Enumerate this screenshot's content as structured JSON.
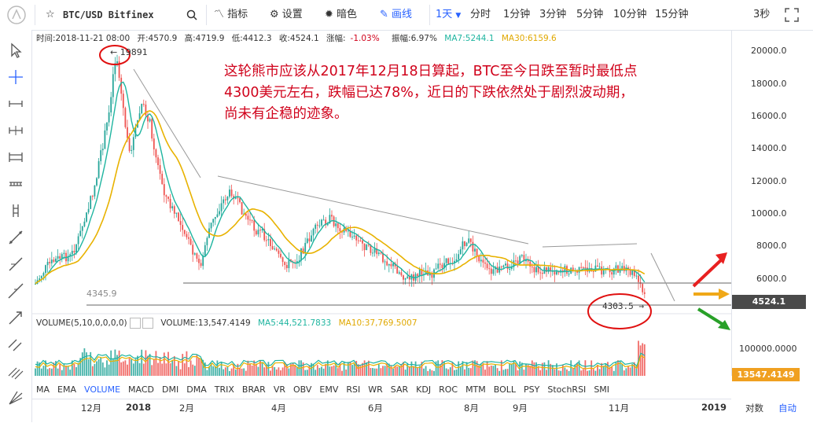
{
  "topbar": {
    "symbol": "BTC/USD Bitfinex",
    "indicators": "指标",
    "settings": "设置",
    "dark": "暗色",
    "draw": "画线",
    "interval_selected": "1天",
    "intervals": [
      "分时",
      "1分钟",
      "3分钟",
      "5分钟",
      "10分钟",
      "15分钟"
    ],
    "refresh": "3秒"
  },
  "info": {
    "time": "时间:2018-11-21 08:00",
    "open": "开:4570.9",
    "high": "高:4719.9",
    "low": "低:4412.3",
    "close": "收:4524.1",
    "change_label": "涨幅:",
    "change": "-1.03%",
    "amp": "振幅:6.97%",
    "ma7": "MA7:5244.1",
    "ma30": "MA30:6159.6"
  },
  "y_axis": [
    "20000.0",
    "18000.0",
    "16000.0",
    "14000.0",
    "12000.0",
    "10000.0",
    "8000.0",
    "6000.0"
  ],
  "current_price": "4524.1",
  "peak_label": "← 19891",
  "low_label": "4303.5 →",
  "support_label": "4345.9",
  "annotation": {
    "line1": "这轮熊市应该从2017年12月18日算起，BTC至今日跌至暂时最低点",
    "line2": "4300美元左右，跌幅已达78%，近日的下跌依然处于剧烈波动期，",
    "line3": "尚未有企稳的迹象。"
  },
  "volume": {
    "title": "VOLUME(5,10,0,0,0,0)",
    "value": "VOLUME:13,547.4149",
    "ma5": "MA5:44,521.7833",
    "ma10": "MA10:37,769.5007",
    "axis": "100000.0000",
    "current": "13547.4149"
  },
  "indicator_tabs": [
    "MA",
    "EMA",
    "VOLUME",
    "MACD",
    "DMI",
    "DMA",
    "TRIX",
    "BRAR",
    "VR",
    "OBV",
    "EMV",
    "RSI",
    "WR",
    "SAR",
    "KDJ",
    "ROC",
    "MTM",
    "BOLL",
    "PSY",
    "StochRSI",
    "SMI"
  ],
  "indicator_active": "VOLUME",
  "x_axis": [
    "12月",
    "2018",
    "2月",
    "4月",
    "6月",
    "8月",
    "9月",
    "11月",
    "2019"
  ],
  "bottom_right": {
    "log": "对数",
    "auto": "自动"
  },
  "colors": {
    "up": "#26a69a",
    "down": "#ef5350",
    "ma7": "#1fb5a0",
    "ma30": "#e0a800",
    "annotation": "#d0021b"
  }
}
